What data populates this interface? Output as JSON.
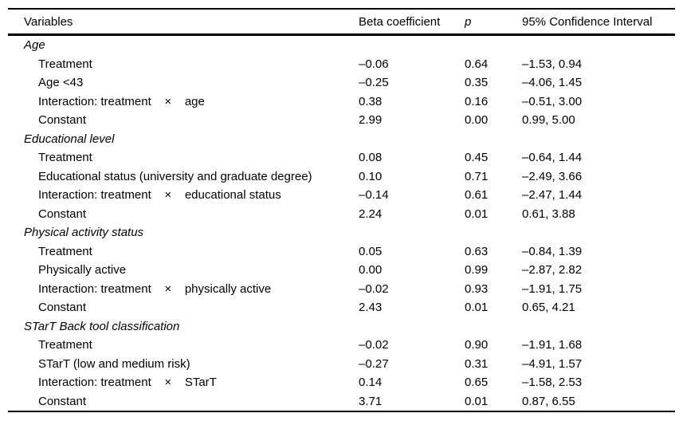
{
  "table": {
    "columns": {
      "variables": "Variables",
      "beta": "Beta coefficient",
      "p": "p",
      "ci": "95% Confidence Interval"
    },
    "sections": [
      {
        "title": "Age",
        "rows": [
          {
            "label": "Treatment",
            "beta": "–0.06",
            "p": "0.64",
            "ci": "–1.53, 0.94"
          },
          {
            "label": "Age <43",
            "beta": "–0.25",
            "p": "0.35",
            "ci": "–4.06, 1.45"
          },
          {
            "label": "Interaction: treatment    ×    age",
            "beta": "0.38",
            "p": "0.16",
            "ci": "–0.51, 3.00"
          },
          {
            "label": "Constant",
            "beta": "2.99",
            "p": "0.00",
            "ci": "0.99, 5.00"
          }
        ]
      },
      {
        "title": "Educational level",
        "rows": [
          {
            "label": "Treatment",
            "beta": "0.08",
            "p": "0.45",
            "ci": "–0.64, 1.44"
          },
          {
            "label": "Educational status (university and graduate degree)",
            "beta": "0.10",
            "p": "0.71",
            "ci": "–2.49, 3.66"
          },
          {
            "label": "Interaction: treatment    ×    educational status",
            "beta": "–0.14",
            "p": "0.61",
            "ci": "–2.47, 1.44"
          },
          {
            "label": "Constant",
            "beta": "2.24",
            "p": "0.01",
            "ci": "0.61, 3.88"
          }
        ]
      },
      {
        "title": "Physical activity status",
        "rows": [
          {
            "label": "Treatment",
            "beta": "0.05",
            "p": "0.63",
            "ci": "–0.84, 1.39"
          },
          {
            "label": "Physically active",
            "beta": "0.00",
            "p": "0.99",
            "ci": "–2.87, 2.82"
          },
          {
            "label": "Interaction: treatment    ×    physically active",
            "beta": "–0.02",
            "p": "0.93",
            "ci": "–1.91, 1.75"
          },
          {
            "label": "Constant",
            "beta": "2.43",
            "p": "0.01",
            "ci": "0.65, 4.21"
          }
        ]
      },
      {
        "title": "STarT Back tool classification",
        "rows": [
          {
            "label": "Treatment",
            "beta": "–0.02",
            "p": "0.90",
            "ci": "–1.91, 1.68"
          },
          {
            "label": "STarT (low and medium risk)",
            "beta": "–0.27",
            "p": "0.31",
            "ci": "–4.91, 1.57"
          },
          {
            "label": "Interaction: treatment    ×    STarT",
            "beta": "0.14",
            "p": "0.65",
            "ci": "–1.58, 2.53"
          },
          {
            "label": "Constant",
            "beta": "3.71",
            "p": "0.01",
            "ci": "0.87, 6.55"
          }
        ]
      }
    ]
  },
  "colors": {
    "text": "#000000",
    "rule": "#000000",
    "background": "#ffffff"
  }
}
